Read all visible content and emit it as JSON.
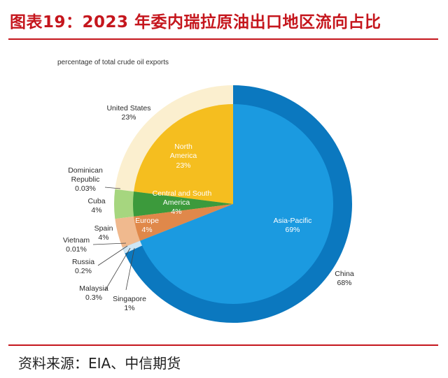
{
  "header": {
    "title": "图表19：2023 年委内瑞拉原油出口地区流向占比"
  },
  "footer": {
    "source": "资料来源：EIA、中信期货"
  },
  "chart_data": {
    "type": "pie",
    "subtitle": "percentage of total crude oil exports",
    "colors": {
      "asia_pacific": "#1b9ae0",
      "asia_ring": "#0b78bf",
      "north_america": "#f5be1f",
      "north_ring": "#fbefcf",
      "csa": "#3c9a3c",
      "csa_ring": "#a6d67f",
      "europe": "#e0884a",
      "europe_ring": "#f0b98e"
    },
    "regions": [
      {
        "name": "Asia-Pacific",
        "value": 69,
        "label": "Asia-Pacific",
        "pct": "69%"
      },
      {
        "name": "North America",
        "value": 23,
        "label": "North America",
        "pct": "23%"
      },
      {
        "name": "Central and South America",
        "value": 4,
        "label": "Central and South America",
        "pct": "4%"
      },
      {
        "name": "Europe",
        "value": 4,
        "label": "Europe",
        "pct": "4%"
      }
    ],
    "countries": [
      {
        "name": "China",
        "value": 68,
        "pct": "68%"
      },
      {
        "name": "United States",
        "value": 23,
        "pct": "23%"
      },
      {
        "name": "Dominican Republic",
        "value": 0.03,
        "pct": "0.03%"
      },
      {
        "name": "Cuba",
        "value": 4,
        "pct": "4%"
      },
      {
        "name": "Spain",
        "value": 4,
        "pct": "4%"
      },
      {
        "name": "Vietnam",
        "value": 0.01,
        "pct": "0.01%"
      },
      {
        "name": "Russia",
        "value": 0.2,
        "pct": "0.2%"
      },
      {
        "name": "Malaysia",
        "value": 0.3,
        "pct": "0.3%"
      },
      {
        "name": "Singapore",
        "value": 1,
        "pct": "1%"
      }
    ]
  }
}
